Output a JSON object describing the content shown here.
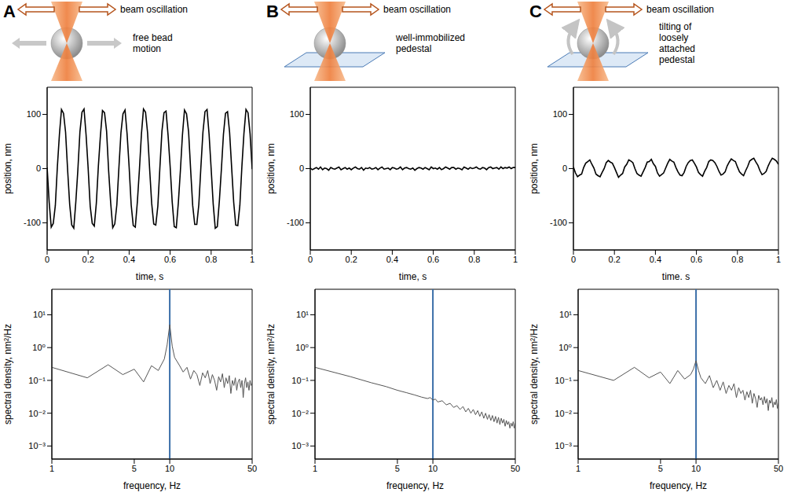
{
  "panels": [
    {
      "letter": "A",
      "beam_label": "beam oscillation",
      "label": "free bead motion"
    },
    {
      "letter": "B",
      "beam_label": "beam oscillation",
      "label": "well-immobilized pedestal"
    },
    {
      "letter": "C",
      "beam_label": "beam oscillation",
      "label": "tilting of loosely attached pedestal"
    }
  ],
  "chart_data": [
    {
      "type": "line",
      "x_label": "time, s",
      "y_label": "position, nm",
      "color": "#000000",
      "grid": false,
      "xlim": [
        0,
        1
      ],
      "xticks": [
        0,
        0.2,
        0.4,
        0.6,
        0.8,
        1
      ],
      "ylim": [
        -150,
        150
      ],
      "yticks": [
        -100,
        0,
        100
      ],
      "x": [
        0,
        0.01,
        0.02,
        0.03,
        0.04,
        0.05,
        0.06,
        0.07,
        0.08,
        0.09,
        0.1,
        0.11,
        0.12,
        0.13,
        0.14,
        0.15,
        0.16,
        0.17,
        0.18,
        0.19,
        0.2,
        0.21,
        0.22,
        0.23,
        0.24,
        0.25,
        0.26,
        0.27,
        0.28,
        0.29,
        0.3,
        0.31,
        0.32,
        0.33,
        0.34,
        0.35,
        0.36,
        0.37,
        0.38,
        0.39,
        0.4,
        0.41,
        0.42,
        0.43,
        0.44,
        0.45,
        0.46,
        0.47,
        0.48,
        0.49,
        0.5,
        0.51,
        0.52,
        0.53,
        0.54,
        0.55,
        0.56,
        0.57,
        0.58,
        0.59,
        0.6,
        0.61,
        0.62,
        0.63,
        0.64,
        0.65,
        0.66,
        0.67,
        0.68,
        0.69,
        0.7,
        0.71,
        0.72,
        0.73,
        0.74,
        0.75,
        0.76,
        0.77,
        0.78,
        0.79,
        0.8,
        0.81,
        0.82,
        0.83,
        0.84,
        0.85,
        0.86,
        0.87,
        0.88,
        0.89,
        0.9,
        0.91,
        0.92,
        0.93,
        0.94,
        0.95,
        0.96,
        0.97,
        0.98,
        0.99,
        1
      ],
      "values": [
        2,
        -62,
        -108,
        -101,
        -68,
        4,
        63,
        109,
        102,
        67,
        -3,
        -66,
        -104,
        -110,
        -61,
        -2,
        68,
        104,
        110,
        62,
        1,
        -69,
        -101,
        -106,
        -64,
        5,
        61,
        107,
        103,
        69,
        -4,
        -63,
        -109,
        -102,
        -67,
        1,
        66,
        101,
        108,
        64,
        3,
        -67,
        -105,
        -108,
        -62,
        -3,
        64,
        110,
        104,
        66,
        -1,
        -64,
        -102,
        -104,
        -69,
        2,
        69,
        103,
        106,
        61,
        4,
        -61,
        -107,
        -109,
        -63,
        -4,
        62,
        108,
        101,
        68,
        -2,
        -68,
        -103,
        -103,
        -66,
        3,
        67,
        105,
        109,
        63,
        0,
        -65,
        -110,
        -107,
        -60,
        -1,
        63,
        102,
        105,
        67,
        2,
        -62,
        -104,
        -105,
        -68,
        4,
        65,
        109,
        103,
        64,
        -1
      ]
    },
    {
      "type": "line",
      "x_label": "time, s",
      "y_label": "position, nm",
      "color": "#000000",
      "grid": false,
      "xlim": [
        0,
        1
      ],
      "xticks": [
        0,
        0.2,
        0.4,
        0.6,
        0.8,
        1
      ],
      "ylim": [
        -150,
        150
      ],
      "yticks": [
        -100,
        0,
        100
      ],
      "x": [
        0,
        0.01,
        0.02,
        0.03,
        0.04,
        0.05,
        0.06,
        0.07,
        0.08,
        0.09,
        0.1,
        0.11,
        0.12,
        0.13,
        0.14,
        0.15,
        0.16,
        0.17,
        0.18,
        0.19,
        0.2,
        0.21,
        0.22,
        0.23,
        0.24,
        0.25,
        0.26,
        0.27,
        0.28,
        0.29,
        0.3,
        0.31,
        0.32,
        0.33,
        0.34,
        0.35,
        0.36,
        0.37,
        0.38,
        0.39,
        0.4,
        0.41,
        0.42,
        0.43,
        0.44,
        0.45,
        0.46,
        0.47,
        0.48,
        0.49,
        0.5,
        0.51,
        0.52,
        0.53,
        0.54,
        0.55,
        0.56,
        0.57,
        0.58,
        0.59,
        0.6,
        0.61,
        0.62,
        0.63,
        0.64,
        0.65,
        0.66,
        0.67,
        0.68,
        0.69,
        0.7,
        0.71,
        0.72,
        0.73,
        0.74,
        0.75,
        0.76,
        0.77,
        0.78,
        0.79,
        0.8,
        0.81,
        0.82,
        0.83,
        0.84,
        0.85,
        0.86,
        0.87,
        0.88,
        0.89,
        0.9,
        0.91,
        0.92,
        0.93,
        0.94,
        0.95,
        0.96,
        0.97,
        0.98,
        0.99,
        1
      ],
      "values": [
        1,
        -2,
        0,
        2,
        -1,
        3,
        -2,
        1,
        0,
        -3,
        2,
        0,
        -1,
        1,
        3,
        -2,
        0,
        2,
        -1,
        1,
        -2,
        1,
        3,
        0,
        -1,
        2,
        -3,
        1,
        0,
        2,
        -1,
        0,
        2,
        -2,
        1,
        3,
        -1,
        0,
        1,
        -2,
        2,
        1,
        -1,
        0,
        3,
        -2,
        1,
        2,
        0,
        -1,
        1,
        -3,
        0,
        2,
        1,
        -1,
        2,
        0,
        -2,
        3,
        0,
        1,
        -1,
        2,
        -2,
        0,
        3,
        1,
        -1,
        2,
        2,
        -1,
        1,
        0,
        -2,
        3,
        1,
        -1,
        2,
        0,
        1,
        3,
        0,
        -1,
        2,
        1,
        -2,
        2,
        3,
        0,
        1,
        2,
        -1,
        3,
        0,
        2,
        1,
        3,
        0,
        2,
        2
      ]
    },
    {
      "type": "line",
      "x_label": "time. s",
      "y_label": "position, nm",
      "color": "#000000",
      "grid": false,
      "xlim": [
        0,
        1
      ],
      "xticks": [
        0,
        0.2,
        0.4,
        0.6,
        0.8,
        1
      ],
      "ylim": [
        -150,
        150
      ],
      "yticks": [
        -100,
        0,
        100
      ],
      "x": [
        0,
        0.01,
        0.02,
        0.03,
        0.04,
        0.05,
        0.06,
        0.07,
        0.08,
        0.09,
        0.1,
        0.11,
        0.12,
        0.13,
        0.14,
        0.15,
        0.16,
        0.17,
        0.18,
        0.19,
        0.2,
        0.21,
        0.22,
        0.23,
        0.24,
        0.25,
        0.26,
        0.27,
        0.28,
        0.29,
        0.3,
        0.31,
        0.32,
        0.33,
        0.34,
        0.35,
        0.36,
        0.37,
        0.38,
        0.39,
        0.4,
        0.41,
        0.42,
        0.43,
        0.44,
        0.45,
        0.46,
        0.47,
        0.48,
        0.49,
        0.5,
        0.51,
        0.52,
        0.53,
        0.54,
        0.55,
        0.56,
        0.57,
        0.58,
        0.59,
        0.6,
        0.61,
        0.62,
        0.63,
        0.64,
        0.65,
        0.66,
        0.67,
        0.68,
        0.69,
        0.7,
        0.71,
        0.72,
        0.73,
        0.74,
        0.75,
        0.76,
        0.77,
        0.78,
        0.79,
        0.8,
        0.81,
        0.82,
        0.83,
        0.84,
        0.85,
        0.86,
        0.87,
        0.88,
        0.89,
        0.9,
        0.91,
        0.92,
        0.93,
        0.94,
        0.95,
        0.96,
        0.97,
        0.98,
        0.99,
        1
      ],
      "values": [
        3,
        -8,
        -15,
        -12,
        -10,
        2,
        10,
        13,
        16,
        8,
        1,
        -10,
        -13,
        -15,
        -7,
        0,
        11,
        15,
        12,
        10,
        2,
        -7,
        -16,
        -12,
        -9,
        3,
        8,
        16,
        14,
        11,
        0,
        -9,
        -12,
        -14,
        -6,
        2,
        12,
        13,
        17,
        9,
        4,
        -8,
        -14,
        -11,
        -8,
        1,
        10,
        17,
        14,
        12,
        2,
        -6,
        -12,
        -13,
        -7,
        4,
        11,
        15,
        16,
        10,
        3,
        -7,
        -11,
        -14,
        -5,
        2,
        13,
        16,
        15,
        11,
        4,
        -5,
        -12,
        -10,
        -6,
        5,
        12,
        18,
        15,
        13,
        3,
        -6,
        -10,
        -13,
        -4,
        4,
        14,
        17,
        19,
        12,
        6,
        -4,
        -11,
        -9,
        -5,
        5,
        13,
        19,
        17,
        14,
        8
      ]
    },
    {
      "type": "line",
      "log": true,
      "x_label": "frequency, Hz",
      "y_label": "spectral density, nm²/Hz",
      "color": "#555555",
      "grid": false,
      "xlim": [
        1,
        50
      ],
      "xticks": [
        1,
        5,
        10,
        50
      ],
      "ylim": [
        0.0004,
        60
      ],
      "yticks": [
        {
          "value": 0.001,
          "label": "10⁻³"
        },
        {
          "value": 0.01,
          "label": "10⁻²"
        },
        {
          "value": 0.1,
          "label": "10⁻¹"
        },
        {
          "value": 1,
          "label": "10⁰"
        },
        {
          "value": 10,
          "label": "10¹"
        }
      ],
      "vertical_line": {
        "x": 10,
        "color": "#3a6ea8"
      },
      "x": [
        1,
        2,
        3,
        4,
        5,
        6,
        7,
        8,
        9,
        9.5,
        10,
        10.5,
        11,
        12,
        13,
        14,
        15,
        16,
        17,
        18,
        19,
        20,
        21,
        22,
        23,
        24,
        25,
        26,
        27,
        28,
        29,
        30,
        31,
        32,
        33,
        34,
        35,
        36,
        37,
        38,
        39,
        40,
        41,
        42,
        43,
        44,
        45,
        46,
        47,
        48,
        49,
        50
      ],
      "values": [
        0.25,
        0.12,
        0.3,
        0.15,
        0.22,
        0.09,
        0.28,
        0.2,
        0.45,
        1.2,
        5,
        1.1,
        0.5,
        0.3,
        0.18,
        0.25,
        0.11,
        0.2,
        0.15,
        0.07,
        0.17,
        0.12,
        0.2,
        0.08,
        0.15,
        0.1,
        0.05,
        0.13,
        0.09,
        0.16,
        0.06,
        0.12,
        0.08,
        0.14,
        0.04,
        0.1,
        0.07,
        0.12,
        0.05,
        0.09,
        0.11,
        0.06,
        0.1,
        0.03,
        0.08,
        0.12,
        0.06,
        0.09,
        0.05,
        0.1,
        0.07,
        0.08
      ]
    },
    {
      "type": "line",
      "log": true,
      "x_label": "frequency, Hz",
      "y_label": "spectral density, nm²/Hz",
      "color": "#555555",
      "grid": false,
      "xlim": [
        1,
        50
      ],
      "xticks": [
        1,
        5,
        10,
        50
      ],
      "ylim": [
        0.0004,
        60
      ],
      "yticks": [
        {
          "value": 0.001,
          "label": "10⁻³"
        },
        {
          "value": 0.01,
          "label": "10⁻²"
        },
        {
          "value": 0.1,
          "label": "10⁻¹"
        },
        {
          "value": 1,
          "label": "10⁰"
        },
        {
          "value": 10,
          "label": "10¹"
        }
      ],
      "vertical_line": {
        "x": 10,
        "color": "#3a6ea8"
      },
      "x": [
        1,
        2,
        3,
        4,
        5,
        6,
        7,
        8,
        9,
        9.5,
        10,
        10.5,
        11,
        12,
        13,
        14,
        15,
        16,
        17,
        18,
        19,
        20,
        21,
        22,
        23,
        24,
        25,
        26,
        27,
        28,
        29,
        30,
        31,
        32,
        33,
        34,
        35,
        36,
        37,
        38,
        39,
        40,
        41,
        42,
        43,
        44,
        45,
        46,
        47,
        48,
        49,
        50
      ],
      "values": [
        0.25,
        0.13,
        0.085,
        0.065,
        0.05,
        0.042,
        0.036,
        0.031,
        0.028,
        0.03,
        0.025,
        0.027,
        0.022,
        0.024,
        0.018,
        0.02,
        0.015,
        0.017,
        0.013,
        0.016,
        0.011,
        0.014,
        0.01,
        0.013,
        0.009,
        0.012,
        0.008,
        0.011,
        0.007,
        0.01,
        0.0065,
        0.009,
        0.006,
        0.0085,
        0.0055,
        0.008,
        0.005,
        0.0075,
        0.0045,
        0.007,
        0.005,
        0.0065,
        0.004,
        0.006,
        0.0045,
        0.0055,
        0.0035,
        0.005,
        0.004,
        0.0055,
        0.0035,
        0.005
      ]
    },
    {
      "type": "line",
      "log": true,
      "x_label": "frequency, Hz",
      "y_label": "spectral density, nm²/Hz",
      "color": "#555555",
      "grid": false,
      "xlim": [
        1,
        50
      ],
      "xticks": [
        1,
        5,
        10,
        50
      ],
      "ylim": [
        0.0004,
        60
      ],
      "yticks": [
        {
          "value": 0.001,
          "label": "10⁻³"
        },
        {
          "value": 0.01,
          "label": "10⁻²"
        },
        {
          "value": 0.1,
          "label": "10⁻¹"
        },
        {
          "value": 1,
          "label": "10⁰"
        },
        {
          "value": 10,
          "label": "10¹"
        }
      ],
      "vertical_line": {
        "x": 10,
        "color": "#3a6ea8"
      },
      "x": [
        1,
        2,
        3,
        4,
        5,
        6,
        7,
        8,
        9,
        9.5,
        10,
        10.5,
        11,
        12,
        13,
        14,
        15,
        16,
        17,
        18,
        19,
        20,
        21,
        22,
        23,
        24,
        25,
        26,
        27,
        28,
        29,
        30,
        31,
        32,
        33,
        34,
        35,
        36,
        37,
        38,
        39,
        40,
        41,
        42,
        43,
        44,
        45,
        46,
        47,
        48,
        49,
        50
      ],
      "values": [
        0.2,
        0.1,
        0.25,
        0.12,
        0.18,
        0.08,
        0.2,
        0.11,
        0.15,
        0.22,
        0.4,
        0.2,
        0.12,
        0.08,
        0.14,
        0.06,
        0.1,
        0.05,
        0.09,
        0.04,
        0.07,
        0.05,
        0.08,
        0.03,
        0.06,
        0.04,
        0.05,
        0.025,
        0.045,
        0.03,
        0.05,
        0.02,
        0.04,
        0.028,
        0.015,
        0.035,
        0.025,
        0.03,
        0.018,
        0.032,
        0.02,
        0.028,
        0.012,
        0.025,
        0.02,
        0.03,
        0.015,
        0.022,
        0.018,
        0.026,
        0.014,
        0.02
      ]
    }
  ]
}
